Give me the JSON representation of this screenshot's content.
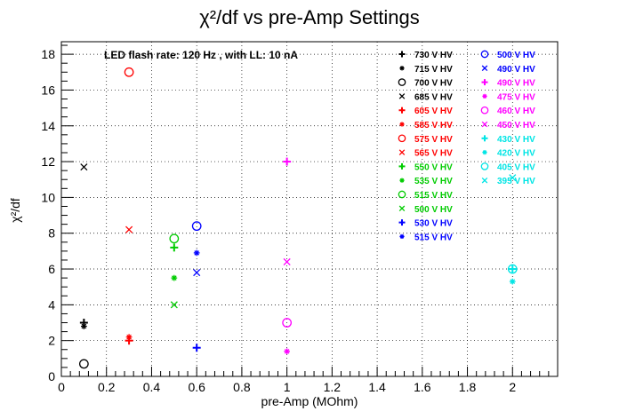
{
  "chart_data": {
    "type": "scatter",
    "title": "χ²/df vs pre-Amp Settings",
    "xlabel": "pre-Amp (MOhm)",
    "ylabel": "χ²/df",
    "annotation": "LED flash rate: 120 Hz , with LL: 10 nA",
    "xlim": [
      0,
      2.2
    ],
    "ylim": [
      0,
      18.7
    ],
    "x_ticks": [
      "0",
      "0.2",
      "0.4",
      "0.6",
      "0.8",
      "1",
      "1.2",
      "1.4",
      "1.6",
      "1.8",
      "2"
    ],
    "y_ticks": [
      "0",
      "2",
      "4",
      "6",
      "8",
      "10",
      "12",
      "14",
      "16",
      "18"
    ],
    "grid": true,
    "legend_placement": "top-right, two columns",
    "series": [
      {
        "name": "730 V HV",
        "color": "#000000",
        "marker": "plus",
        "x": [
          0.1
        ],
        "y": [
          3.0
        ]
      },
      {
        "name": "715 V HV",
        "color": "#000000",
        "marker": "star",
        "x": [
          0.1
        ],
        "y": [
          2.8
        ]
      },
      {
        "name": "700 V HV",
        "color": "#000000",
        "marker": "circle",
        "x": [
          0.1
        ],
        "y": [
          0.7
        ]
      },
      {
        "name": "685 V HV",
        "color": "#000000",
        "marker": "cross",
        "x": [
          0.1
        ],
        "y": [
          11.7
        ]
      },
      {
        "name": "605 V HV",
        "color": "#ff0000",
        "marker": "plus",
        "x": [
          0.3
        ],
        "y": [
          2.0
        ]
      },
      {
        "name": "585 V HV",
        "color": "#ff0000",
        "marker": "star",
        "x": [
          0.3
        ],
        "y": [
          2.2
        ]
      },
      {
        "name": "575 V HV",
        "color": "#ff0000",
        "marker": "circle",
        "x": [
          0.3
        ],
        "y": [
          17.0
        ]
      },
      {
        "name": "565 V HV",
        "color": "#ff0000",
        "marker": "cross",
        "x": [
          0.3
        ],
        "y": [
          8.2
        ]
      },
      {
        "name": "550 V HV",
        "color": "#00cc00",
        "marker": "plus",
        "x": [
          0.5
        ],
        "y": [
          7.2
        ]
      },
      {
        "name": "535 V HV",
        "color": "#00cc00",
        "marker": "star",
        "x": [
          0.5
        ],
        "y": [
          5.5
        ]
      },
      {
        "name": "515 V HV",
        "color": "#00cc00",
        "marker": "circle",
        "x": [
          0.5
        ],
        "y": [
          7.7
        ]
      },
      {
        "name": "500 V HV",
        "color": "#00cc00",
        "marker": "cross",
        "x": [
          0.5
        ],
        "y": [
          4.0
        ]
      },
      {
        "name": "530 V HV",
        "color": "#0000ff",
        "marker": "plus",
        "x": [
          0.6
        ],
        "y": [
          1.6
        ]
      },
      {
        "name": "515 V HV",
        "color": "#0000ff",
        "marker": "star",
        "x": [
          0.6
        ],
        "y": [
          6.9
        ]
      },
      {
        "name": "500 V HV",
        "color": "#0000ff",
        "marker": "circle",
        "x": [
          0.6
        ],
        "y": [
          8.4
        ]
      },
      {
        "name": "490 V HV",
        "color": "#0000ff",
        "marker": "cross",
        "x": [
          0.6
        ],
        "y": [
          5.8
        ]
      },
      {
        "name": "490 V HV",
        "color": "#ff00ff",
        "marker": "plus",
        "x": [
          1.0
        ],
        "y": [
          12.0
        ]
      },
      {
        "name": "475 V HV",
        "color": "#ff00ff",
        "marker": "star",
        "x": [
          1.0
        ],
        "y": [
          1.4
        ]
      },
      {
        "name": "460 V HV",
        "color": "#ff00ff",
        "marker": "circle",
        "x": [
          1.0
        ],
        "y": [
          3.0
        ]
      },
      {
        "name": "450 V HV",
        "color": "#ff00ff",
        "marker": "cross",
        "x": [
          1.0
        ],
        "y": [
          6.4
        ]
      },
      {
        "name": "430 V HV",
        "color": "#00e5e5",
        "marker": "plus",
        "x": [
          2.0
        ],
        "y": [
          6.0
        ]
      },
      {
        "name": "420 V HV",
        "color": "#00e5e5",
        "marker": "star",
        "x": [
          2.0
        ],
        "y": [
          5.3
        ]
      },
      {
        "name": "405 V HV",
        "color": "#00e5e5",
        "marker": "circle",
        "x": [
          2.0
        ],
        "y": [
          6.0
        ]
      },
      {
        "name": "395 V HV",
        "color": "#00e5e5",
        "marker": "cross",
        "x": [
          2.0
        ],
        "y": [
          11.1
        ]
      }
    ]
  }
}
